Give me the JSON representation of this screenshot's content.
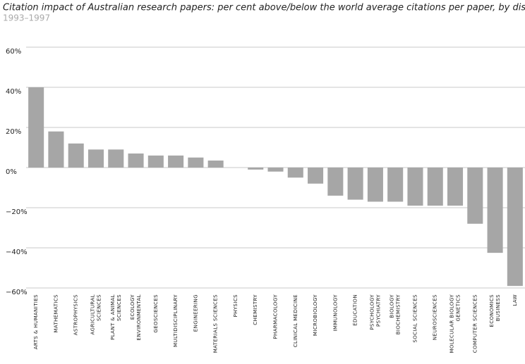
{
  "chart_data": {
    "type": "bar",
    "title": "Citation impact of Australian research papers: per cent above/below the world average citations per paper, by discipline",
    "subtitle": "1993–1997",
    "categories": [
      [
        "ARTS & HUMANITIES"
      ],
      [
        "MATHEMATICS"
      ],
      [
        "ASTROPHYSICS"
      ],
      [
        "AGRICULTURAL",
        "SCIENCES"
      ],
      [
        "PLANT & ANIMAL",
        "SCIENCES"
      ],
      [
        "ECOLOGY",
        "ENVIRONMENTAL"
      ],
      [
        "GEOSCIENCES"
      ],
      [
        "MULTIDISCIPLINARY"
      ],
      [
        "ENGINEERING"
      ],
      [
        "MATERIALS SCIENCES"
      ],
      [
        "PHYSICS"
      ],
      [
        "CHEMISTRY"
      ],
      [
        "PHARMACOLOGY"
      ],
      [
        "CLINICAL MEDICINE"
      ],
      [
        "MICROBIOLOGY"
      ],
      [
        "IMMUNOLOGY"
      ],
      [
        "EDUCATION"
      ],
      [
        "PSYCHOLOGY",
        "PSYCHIATRY"
      ],
      [
        "BIOLOGY",
        "BIOCHEMISTRY"
      ],
      [
        "SOCIAL SCIENCES"
      ],
      [
        "NEUROSCIENCES"
      ],
      [
        "MOLECULAR BIOLOGY",
        "GENETICS"
      ],
      [
        "COMPUTER SCIENCES"
      ],
      [
        "ECONOMICS",
        "BUSINESS"
      ],
      [
        "LAW"
      ]
    ],
    "values": [
      40,
      18,
      12,
      9,
      9,
      7,
      6,
      6,
      5,
      3.5,
      0,
      -1,
      -2,
      -5,
      -8,
      -14,
      -16,
      -17,
      -17,
      -19,
      -19,
      -19,
      -28,
      -42.5,
      -59
    ],
    "color": "#a6a6a6",
    "ylim": [
      -60,
      60
    ],
    "yticks": [
      {
        "value": 60,
        "label": "60%"
      },
      {
        "value": 40,
        "label": "40%"
      },
      {
        "value": 20,
        "label": "20%"
      },
      {
        "value": 0,
        "label": "0%"
      },
      {
        "value": -20,
        "label": "−20%"
      },
      {
        "value": -40,
        "label": "−40%"
      },
      {
        "value": -60,
        "label": "−60%"
      }
    ],
    "grid": true
  }
}
